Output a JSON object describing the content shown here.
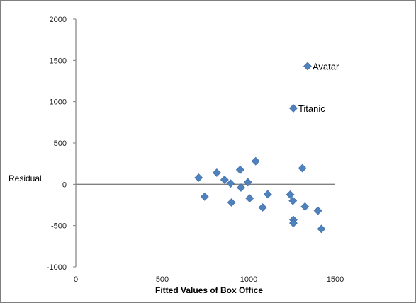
{
  "chart_data": {
    "type": "scatter",
    "xlabel": "Fitted Values of Box Office",
    "ylabel": "Residual",
    "xlim": [
      0,
      1500
    ],
    "ylim": [
      -1000,
      2000
    ],
    "x_ticks": [
      0,
      500,
      1000,
      1500
    ],
    "y_ticks": [
      2000,
      1500,
      1000,
      500,
      0,
      -500,
      -1000
    ],
    "grid": false,
    "marker_color": "#4f81bd",
    "series": [
      {
        "points": [
          {
            "x": 710,
            "y": 80
          },
          {
            "x": 745,
            "y": -150
          },
          {
            "x": 815,
            "y": 140
          },
          {
            "x": 860,
            "y": 55
          },
          {
            "x": 895,
            "y": 10
          },
          {
            "x": 900,
            "y": -220
          },
          {
            "x": 950,
            "y": 175
          },
          {
            "x": 955,
            "y": -40
          },
          {
            "x": 995,
            "y": 25
          },
          {
            "x": 1005,
            "y": -170
          },
          {
            "x": 1040,
            "y": 280
          },
          {
            "x": 1080,
            "y": -280
          },
          {
            "x": 1110,
            "y": -120
          },
          {
            "x": 1240,
            "y": -125
          },
          {
            "x": 1255,
            "y": -200
          },
          {
            "x": 1258,
            "y": -430
          },
          {
            "x": 1258,
            "y": -470
          },
          {
            "x": 1258,
            "y": 920,
            "label": "Titanic"
          },
          {
            "x": 1310,
            "y": 195
          },
          {
            "x": 1325,
            "y": -270
          },
          {
            "x": 1340,
            "y": 1430,
            "label": "Avatar"
          },
          {
            "x": 1400,
            "y": -320
          },
          {
            "x": 1420,
            "y": -540
          }
        ]
      }
    ]
  }
}
